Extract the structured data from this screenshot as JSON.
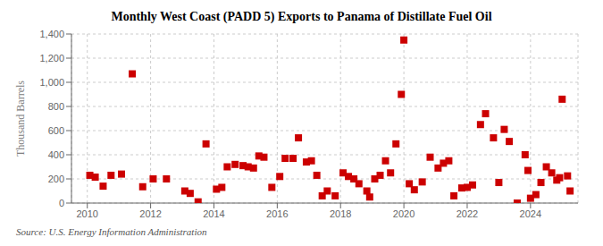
{
  "chart_data": {
    "type": "scatter",
    "title": "Monthly West Coast (PADD 5) Exports to Panama of Distillate Fuel Oil",
    "ylabel": "Thousand Barrels",
    "annotation": "Source: U.S. Energy Information Administration",
    "color": "#cc0000",
    "marker": "square",
    "grid": true,
    "xlim": [
      2009.5,
      2025.5
    ],
    "ylim": [
      0,
      1400
    ],
    "xticks": [
      2010,
      2012,
      2014,
      2016,
      2018,
      2020,
      2022,
      2024
    ],
    "yticks": [
      0,
      200,
      400,
      600,
      800,
      {
        "value": 1000,
        "label": "1,000"
      },
      {
        "value": 1200,
        "label": "1,200"
      },
      {
        "value": 1400,
        "label": "1,400"
      }
    ],
    "x": [
      2010.08,
      2010.25,
      2010.5,
      2010.75,
      2011.08,
      2011.42,
      2011.75,
      2012.08,
      2012.5,
      2013.08,
      2013.25,
      2013.5,
      2013.75,
      2014.08,
      2014.25,
      2014.42,
      2014.67,
      2014.92,
      2015.08,
      2015.25,
      2015.42,
      2015.58,
      2015.83,
      2016.08,
      2016.25,
      2016.5,
      2016.67,
      2016.92,
      2017.08,
      2017.25,
      2017.42,
      2017.58,
      2017.83,
      2018.08,
      2018.25,
      2018.42,
      2018.58,
      2018.83,
      2018.92,
      2019.08,
      2019.25,
      2019.42,
      2019.58,
      2019.75,
      2019.92,
      2020.0,
      2020.17,
      2020.33,
      2020.58,
      2020.83,
      2021.08,
      2021.25,
      2021.42,
      2021.58,
      2021.83,
      2022.0,
      2022.17,
      2022.42,
      2022.58,
      2022.83,
      2023.0,
      2023.17,
      2023.33,
      2023.58,
      2023.83,
      2023.92,
      2024.0,
      2024.17,
      2024.33,
      2024.5,
      2024.67,
      2024.83,
      2024.92,
      2025.0,
      2025.17,
      2025.25
    ],
    "values": [
      230,
      215,
      140,
      230,
      240,
      1070,
      135,
      200,
      200,
      100,
      80,
      10,
      490,
      115,
      130,
      300,
      320,
      310,
      300,
      290,
      390,
      380,
      130,
      220,
      370,
      370,
      540,
      340,
      350,
      230,
      60,
      100,
      60,
      250,
      220,
      200,
      160,
      100,
      50,
      200,
      230,
      350,
      250,
      490,
      900,
      1350,
      160,
      110,
      175,
      380,
      290,
      330,
      350,
      60,
      125,
      130,
      150,
      650,
      740,
      540,
      170,
      610,
      510,
      0,
      400,
      270,
      40,
      70,
      170,
      300,
      250,
      190,
      210,
      860,
      225,
      100
    ]
  }
}
